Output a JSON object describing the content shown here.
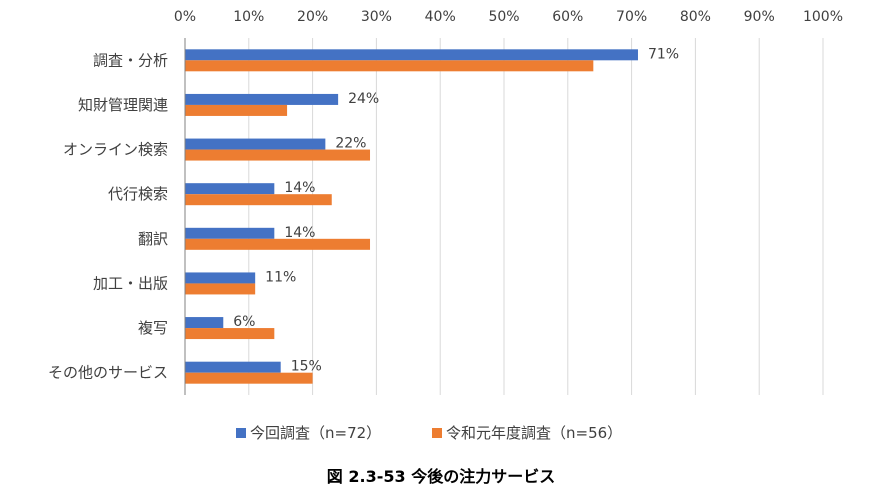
{
  "chart_data": {
    "type": "bar",
    "orientation": "horizontal",
    "categories": [
      "調査・分析",
      "知財管理関連",
      "オンライン検索",
      "代行検索",
      "翻訳",
      "加工・出版",
      "複写",
      "その他のサービス"
    ],
    "series": [
      {
        "name": "今回調査（n=72）",
        "values": [
          71,
          24,
          22,
          14,
          14,
          11,
          6,
          15
        ],
        "color": "#4472C4",
        "labels": [
          "71%",
          "24%",
          "22%",
          "14%",
          "14%",
          "11%",
          "6%",
          "15%"
        ]
      },
      {
        "name": "令和元年度調査（n=56）",
        "values": [
          64,
          16,
          29,
          23,
          29,
          11,
          14,
          20
        ],
        "color": "#ED7D31"
      }
    ],
    "xlim": [
      0,
      100
    ],
    "xticks": [
      "0%",
      "10%",
      "20%",
      "30%",
      "40%",
      "50%",
      "60%",
      "70%",
      "80%",
      "90%",
      "100%"
    ],
    "grid": true,
    "axis_position": "top",
    "legend": "bottom",
    "caption": "図 2.3-53 今後の注力サービス"
  }
}
